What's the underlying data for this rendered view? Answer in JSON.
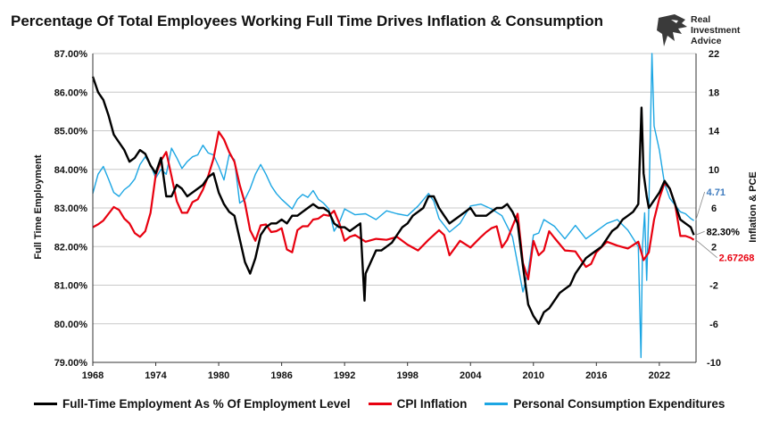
{
  "header": {
    "title": "Percentage Of Total Employees Working Full Time Drives Inflation & Consumption"
  },
  "logo": {
    "line1": "Real",
    "line2": "Investment",
    "line3": "Advice",
    "icon": "eagle-head-icon"
  },
  "colors": {
    "employment": "#000000",
    "cpi": "#e8000f",
    "pce": "#1ca6e3",
    "grid": "#c8c8c8",
    "pce_label": "#3f7cbf"
  },
  "chart_data": {
    "type": "line",
    "title": "Percentage Of Total Employees Working Full Time Drives Inflation & Consumption",
    "xlabel": "",
    "ylabel_left": "Full Time Employment",
    "ylabel_right": "Inflation & PCE",
    "xlim": [
      1968,
      2025.5
    ],
    "ylim_left": [
      79,
      87
    ],
    "ylim_right": [
      -10,
      22
    ],
    "x_ticks": [
      "1968",
      "1974",
      "1980",
      "1986",
      "1992",
      "1998",
      "2004",
      "2010",
      "2016",
      "2022"
    ],
    "y_ticks_left": [
      "79.00%",
      "80.00%",
      "81.00%",
      "82.00%",
      "83.00%",
      "84.00%",
      "85.00%",
      "86.00%",
      "87.00%"
    ],
    "y_ticks_right": [
      "-10",
      "-6",
      "-2",
      "2",
      "6",
      "10",
      "14",
      "18",
      "22"
    ],
    "grid": "horizontal",
    "legend_position": "bottom",
    "series": [
      {
        "name": "Full-Time Employment As % Of Employment Level",
        "axis": "left",
        "x": [
          1968.0,
          1968.5,
          1969.0,
          1969.5,
          1970.0,
          1970.5,
          1971.0,
          1971.5,
          1972.0,
          1972.5,
          1973.0,
          1973.5,
          1974.0,
          1974.5,
          1975.0,
          1975.5,
          1976.0,
          1976.5,
          1977.0,
          1977.5,
          1978.0,
          1978.5,
          1979.0,
          1979.5,
          1980.0,
          1980.5,
          1981.0,
          1981.5,
          1982.0,
          1982.5,
          1983.0,
          1983.5,
          1984.0,
          1984.5,
          1985.0,
          1985.5,
          1986.0,
          1986.5,
          1987.0,
          1987.5,
          1988.0,
          1988.5,
          1989.0,
          1989.5,
          1990.0,
          1990.5,
          1991.0,
          1991.5,
          1992.0,
          1992.5,
          1993.0,
          1993.5,
          1993.9,
          1994.0,
          1994.5,
          1995.0,
          1995.5,
          1996.0,
          1996.5,
          1997.0,
          1997.5,
          1998.0,
          1998.5,
          1999.0,
          1999.5,
          2000.0,
          2000.5,
          2001.0,
          2001.5,
          2002.0,
          2002.5,
          2003.0,
          2003.5,
          2004.0,
          2004.5,
          2005.0,
          2005.5,
          2006.0,
          2006.5,
          2007.0,
          2007.5,
          2008.0,
          2008.5,
          2009.0,
          2009.5,
          2010.0,
          2010.5,
          2011.0,
          2011.5,
          2012.0,
          2012.5,
          2013.0,
          2013.5,
          2014.0,
          2014.5,
          2015.0,
          2015.5,
          2016.0,
          2016.5,
          2017.0,
          2017.5,
          2018.0,
          2018.5,
          2019.0,
          2019.5,
          2020.0,
          2020.3,
          2020.5,
          2020.8,
          2021.0,
          2021.5,
          2022.0,
          2022.5,
          2023.0,
          2023.5,
          2024.0,
          2024.5,
          2025.0,
          2025.3
        ],
        "values": [
          86.4,
          86.0,
          85.8,
          85.4,
          84.9,
          84.7,
          84.5,
          84.2,
          84.3,
          84.5,
          84.4,
          84.1,
          83.9,
          84.3,
          83.3,
          83.3,
          83.6,
          83.5,
          83.3,
          83.4,
          83.5,
          83.6,
          83.8,
          83.9,
          83.4,
          83.1,
          82.9,
          82.8,
          82.2,
          81.6,
          81.3,
          81.7,
          82.3,
          82.5,
          82.6,
          82.6,
          82.7,
          82.6,
          82.8,
          82.8,
          82.9,
          83.0,
          83.1,
          83.0,
          83.0,
          82.9,
          82.6,
          82.5,
          82.5,
          82.4,
          82.5,
          82.6,
          80.6,
          81.3,
          81.6,
          81.9,
          81.9,
          82.0,
          82.1,
          82.3,
          82.5,
          82.6,
          82.8,
          82.9,
          83.0,
          83.3,
          83.3,
          83.0,
          82.8,
          82.6,
          82.7,
          82.8,
          82.9,
          83.0,
          82.8,
          82.8,
          82.8,
          82.9,
          83.0,
          83.0,
          83.1,
          82.9,
          82.6,
          81.5,
          80.5,
          80.2,
          80.0,
          80.3,
          80.4,
          80.6,
          80.8,
          80.9,
          81.0,
          81.3,
          81.5,
          81.7,
          81.8,
          81.9,
          82.0,
          82.2,
          82.4,
          82.5,
          82.7,
          82.8,
          82.9,
          83.1,
          85.6,
          83.9,
          83.3,
          83.0,
          83.2,
          83.4,
          83.7,
          83.5,
          83.1,
          82.7,
          82.6,
          82.5,
          82.3
        ]
      },
      {
        "name": "CPI Inflation",
        "axis": "right",
        "x": [
          1968.0,
          1968.5,
          1969.0,
          1969.5,
          1970.0,
          1970.5,
          1971.0,
          1971.5,
          1972.0,
          1972.5,
          1973.0,
          1973.5,
          1974.0,
          1974.5,
          1975.0,
          1975.5,
          1976.0,
          1976.5,
          1977.0,
          1977.5,
          1978.0,
          1978.5,
          1979.0,
          1979.5,
          1980.0,
          1980.5,
          1981.0,
          1981.5,
          1982.0,
          1982.5,
          1983.0,
          1983.5,
          1984.0,
          1984.5,
          1985.0,
          1985.5,
          1986.0,
          1986.5,
          1987.0,
          1987.5,
          1988.0,
          1988.5,
          1989.0,
          1989.5,
          1990.0,
          1990.5,
          1991.0,
          1991.5,
          1992.0,
          1992.5,
          1993.0,
          1994.0,
          1995.0,
          1996.0,
          1997.0,
          1998.0,
          1999.0,
          2000.0,
          2001.0,
          2001.5,
          2002.0,
          2003.0,
          2004.0,
          2005.0,
          2005.5,
          2006.0,
          2006.5,
          2007.0,
          2007.5,
          2008.0,
          2008.5,
          2009.0,
          2009.5,
          2010.0,
          2010.5,
          2011.0,
          2011.5,
          2012.0,
          2013.0,
          2014.0,
          2015.0,
          2015.5,
          2016.0,
          2017.0,
          2018.0,
          2019.0,
          2020.0,
          2020.5,
          2021.0,
          2021.5,
          2022.0,
          2022.5,
          2023.0,
          2023.5,
          2024.0,
          2024.5,
          2025.0,
          2025.3
        ],
        "values": [
          4.0,
          4.3,
          4.7,
          5.4,
          6.1,
          5.8,
          4.9,
          4.4,
          3.4,
          3.0,
          3.6,
          5.5,
          9.4,
          10.9,
          11.8,
          9.3,
          6.7,
          5.5,
          5.5,
          6.6,
          6.9,
          7.9,
          9.3,
          11.1,
          13.9,
          13.1,
          11.8,
          10.8,
          8.4,
          6.5,
          3.7,
          2.6,
          4.2,
          4.3,
          3.5,
          3.6,
          3.9,
          1.7,
          1.4,
          3.7,
          4.1,
          4.1,
          4.8,
          4.9,
          5.3,
          5.2,
          5.7,
          4.4,
          2.6,
          3.0,
          3.2,
          2.5,
          2.8,
          2.7,
          3.0,
          2.2,
          1.6,
          2.7,
          3.7,
          3.2,
          1.1,
          2.6,
          1.9,
          3.0,
          3.5,
          3.9,
          4.1,
          1.9,
          2.7,
          4.1,
          5.4,
          0.3,
          -1.4,
          2.6,
          1.1,
          1.6,
          3.6,
          2.9,
          1.6,
          1.5,
          -0.1,
          0.2,
          1.4,
          2.5,
          2.1,
          1.8,
          2.5,
          0.6,
          1.4,
          4.8,
          7.0,
          8.6,
          8.0,
          6.4,
          3.1,
          3.1,
          2.9,
          2.7
        ]
      },
      {
        "name": "Personal Consumption Expenditures",
        "axis": "right",
        "x": [
          1968.0,
          1968.5,
          1969.0,
          1969.5,
          1970.0,
          1970.5,
          1971.0,
          1971.5,
          1972.0,
          1972.5,
          1973.0,
          1973.5,
          1974.0,
          1974.5,
          1975.0,
          1975.5,
          1976.0,
          1976.5,
          1977.0,
          1977.5,
          1978.0,
          1978.5,
          1979.0,
          1979.5,
          1980.0,
          1980.5,
          1981.0,
          1981.5,
          1982.0,
          1982.5,
          1983.0,
          1983.5,
          1984.0,
          1984.5,
          1985.0,
          1985.5,
          1986.0,
          1986.5,
          1987.0,
          1987.5,
          1988.0,
          1988.5,
          1989.0,
          1989.5,
          1990.0,
          1990.5,
          1991.0,
          1991.5,
          1992.0,
          1993.0,
          1994.0,
          1995.0,
          1996.0,
          1997.0,
          1998.0,
          1999.0,
          2000.0,
          2000.5,
          2001.0,
          2002.0,
          2003.0,
          2004.0,
          2005.0,
          2006.0,
          2007.0,
          2008.0,
          2008.5,
          2009.0,
          2009.5,
          2010.0,
          2010.5,
          2011.0,
          2012.0,
          2013.0,
          2014.0,
          2015.0,
          2016.0,
          2017.0,
          2018.0,
          2019.0,
          2020.0,
          2020.25,
          2020.4,
          2020.6,
          2020.8,
          2021.0,
          2021.3,
          2021.5,
          2022.0,
          2022.5,
          2023.0,
          2023.5,
          2024.0,
          2024.5,
          2025.0,
          2025.3
        ],
        "values": [
          7.5,
          9.5,
          10.3,
          9.0,
          7.6,
          7.2,
          7.9,
          8.3,
          9.0,
          10.5,
          11.3,
          10.5,
          9.1,
          10.0,
          9.5,
          12.2,
          11.2,
          10.1,
          10.8,
          11.3,
          11.5,
          12.5,
          11.7,
          11.5,
          10.3,
          8.9,
          11.5,
          11.0,
          6.5,
          6.9,
          8.0,
          9.5,
          10.5,
          9.5,
          8.3,
          7.5,
          6.9,
          6.4,
          5.9,
          6.9,
          7.4,
          7.1,
          7.8,
          6.9,
          6.5,
          5.9,
          3.6,
          4.5,
          5.9,
          5.3,
          5.4,
          4.8,
          5.7,
          5.4,
          5.2,
          6.2,
          7.5,
          6.7,
          4.9,
          3.5,
          4.4,
          6.2,
          6.4,
          5.9,
          5.2,
          3.0,
          0.2,
          -2.7,
          -0.5,
          3.2,
          3.4,
          4.8,
          4.1,
          2.8,
          4.2,
          2.8,
          3.6,
          4.4,
          4.8,
          3.7,
          2.0,
          -9.5,
          2.0,
          5.5,
          -1.5,
          6.0,
          22.0,
          14.5,
          12.0,
          8.5,
          7.0,
          6.3,
          5.6,
          5.4,
          4.9,
          4.7
        ]
      }
    ],
    "annotations": [
      {
        "text": "82.30%",
        "series": "Full-Time Employment As % Of Employment Level"
      },
      {
        "text": "4.71",
        "series": "Personal Consumption Expenditures"
      },
      {
        "text": "2.67268",
        "series": "CPI Inflation"
      }
    ]
  }
}
